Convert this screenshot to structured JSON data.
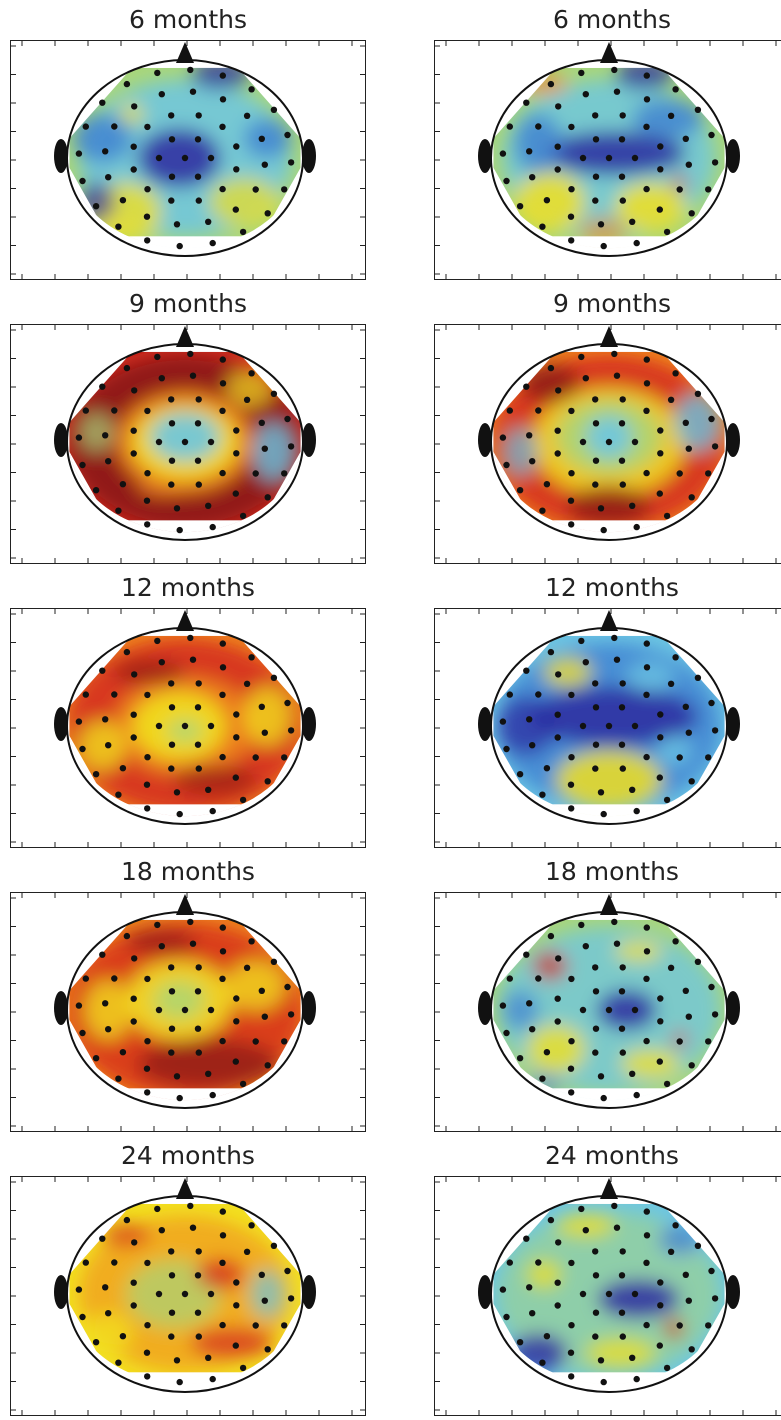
{
  "panels": [
    {
      "title": "6 months",
      "scheme": "cool"
    },
    {
      "title": "6 months",
      "scheme": "cool2"
    },
    {
      "title": "9 months",
      "scheme": "hot_ring"
    },
    {
      "title": "9 months",
      "scheme": "hot_ring2"
    },
    {
      "title": "12 months",
      "scheme": "hot"
    },
    {
      "title": "12 months",
      "scheme": "cool_dark"
    },
    {
      "title": "18 months",
      "scheme": "hot2"
    },
    {
      "title": "18 months",
      "scheme": "mixed"
    },
    {
      "title": "24 months",
      "scheme": "warm"
    },
    {
      "title": "24 months",
      "scheme": "mixed2"
    }
  ],
  "colors": {
    "darkblue": "#2c2aa0",
    "blue": "#3f7fd1",
    "cyan": "#6cc6e3",
    "green": "#a9d67a",
    "yellow": "#f2e020",
    "orange": "#f08a1c",
    "red": "#d42a1c",
    "darkred": "#8a1a18",
    "electrode": "#111111"
  }
}
